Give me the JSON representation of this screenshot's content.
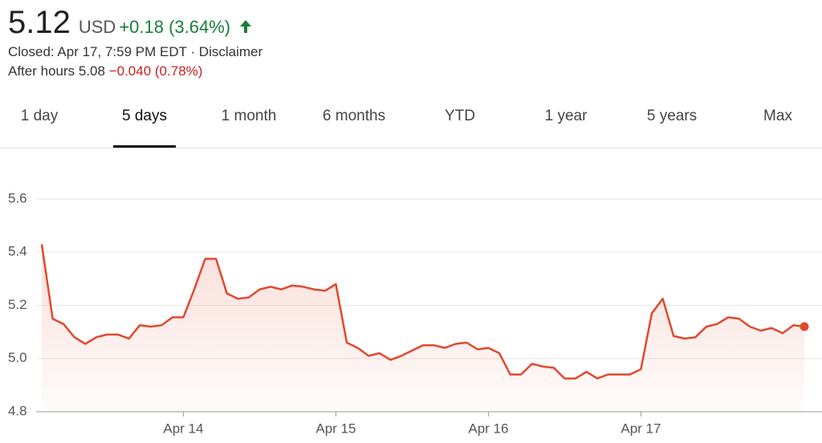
{
  "header": {
    "price": "5.12",
    "currency": "USD",
    "change": "+0.18 (3.64%)",
    "status": "Closed: Apr 17, 7:59 PM EDT · Disclaimer",
    "after_hours": "After hours 5.08",
    "after_hours_change": "−0.040 (0.78%)"
  },
  "tabs": {
    "items": [
      "1 day",
      "5 days",
      "1 month",
      "6 months",
      "YTD",
      "1 year",
      "5 years",
      "Max"
    ],
    "selected": 1
  },
  "chart_data": {
    "type": "line",
    "color": "#e0492f",
    "grid": true,
    "categories": [
      null,
      null,
      null,
      null,
      null,
      null,
      null,
      null,
      null,
      null,
      null,
      null,
      null,
      "Apr 14",
      null,
      null,
      null,
      null,
      null,
      null,
      null,
      null,
      null,
      null,
      null,
      null,
      null,
      "Apr 15",
      null,
      null,
      null,
      null,
      null,
      null,
      null,
      null,
      null,
      null,
      null,
      null,
      null,
      "Apr 16",
      null,
      null,
      null,
      null,
      null,
      null,
      null,
      null,
      null,
      null,
      null,
      null,
      null,
      "Apr 17",
      null,
      null,
      null,
      null,
      null,
      null,
      null,
      null,
      null,
      null,
      null,
      null,
      null,
      null,
      null
    ],
    "values": [
      5.43,
      5.15,
      5.13,
      5.08,
      5.055,
      5.08,
      5.09,
      5.09,
      5.075,
      5.125,
      5.12,
      5.125,
      5.155,
      5.155,
      5.26,
      5.375,
      5.375,
      5.245,
      5.225,
      5.23,
      5.26,
      5.27,
      5.26,
      5.275,
      5.27,
      5.26,
      5.255,
      5.28,
      5.06,
      5.04,
      5.01,
      5.02,
      4.995,
      5.01,
      5.03,
      5.05,
      5.05,
      5.04,
      5.055,
      5.06,
      5.035,
      5.04,
      5.02,
      4.94,
      4.94,
      4.98,
      4.97,
      4.965,
      4.925,
      4.925,
      4.95,
      4.925,
      4.94,
      4.94,
      4.94,
      4.96,
      5.17,
      5.225,
      5.085,
      5.075,
      5.08,
      5.12,
      5.13,
      5.155,
      5.15,
      5.12,
      5.105,
      5.115,
      5.095,
      5.125,
      5.12
    ],
    "ylim": [
      4.8,
      5.6
    ],
    "yticks": [
      4.8,
      {
        "value": 5,
        "label": "5.0"
      },
      5.2,
      5.4,
      5.6
    ]
  }
}
